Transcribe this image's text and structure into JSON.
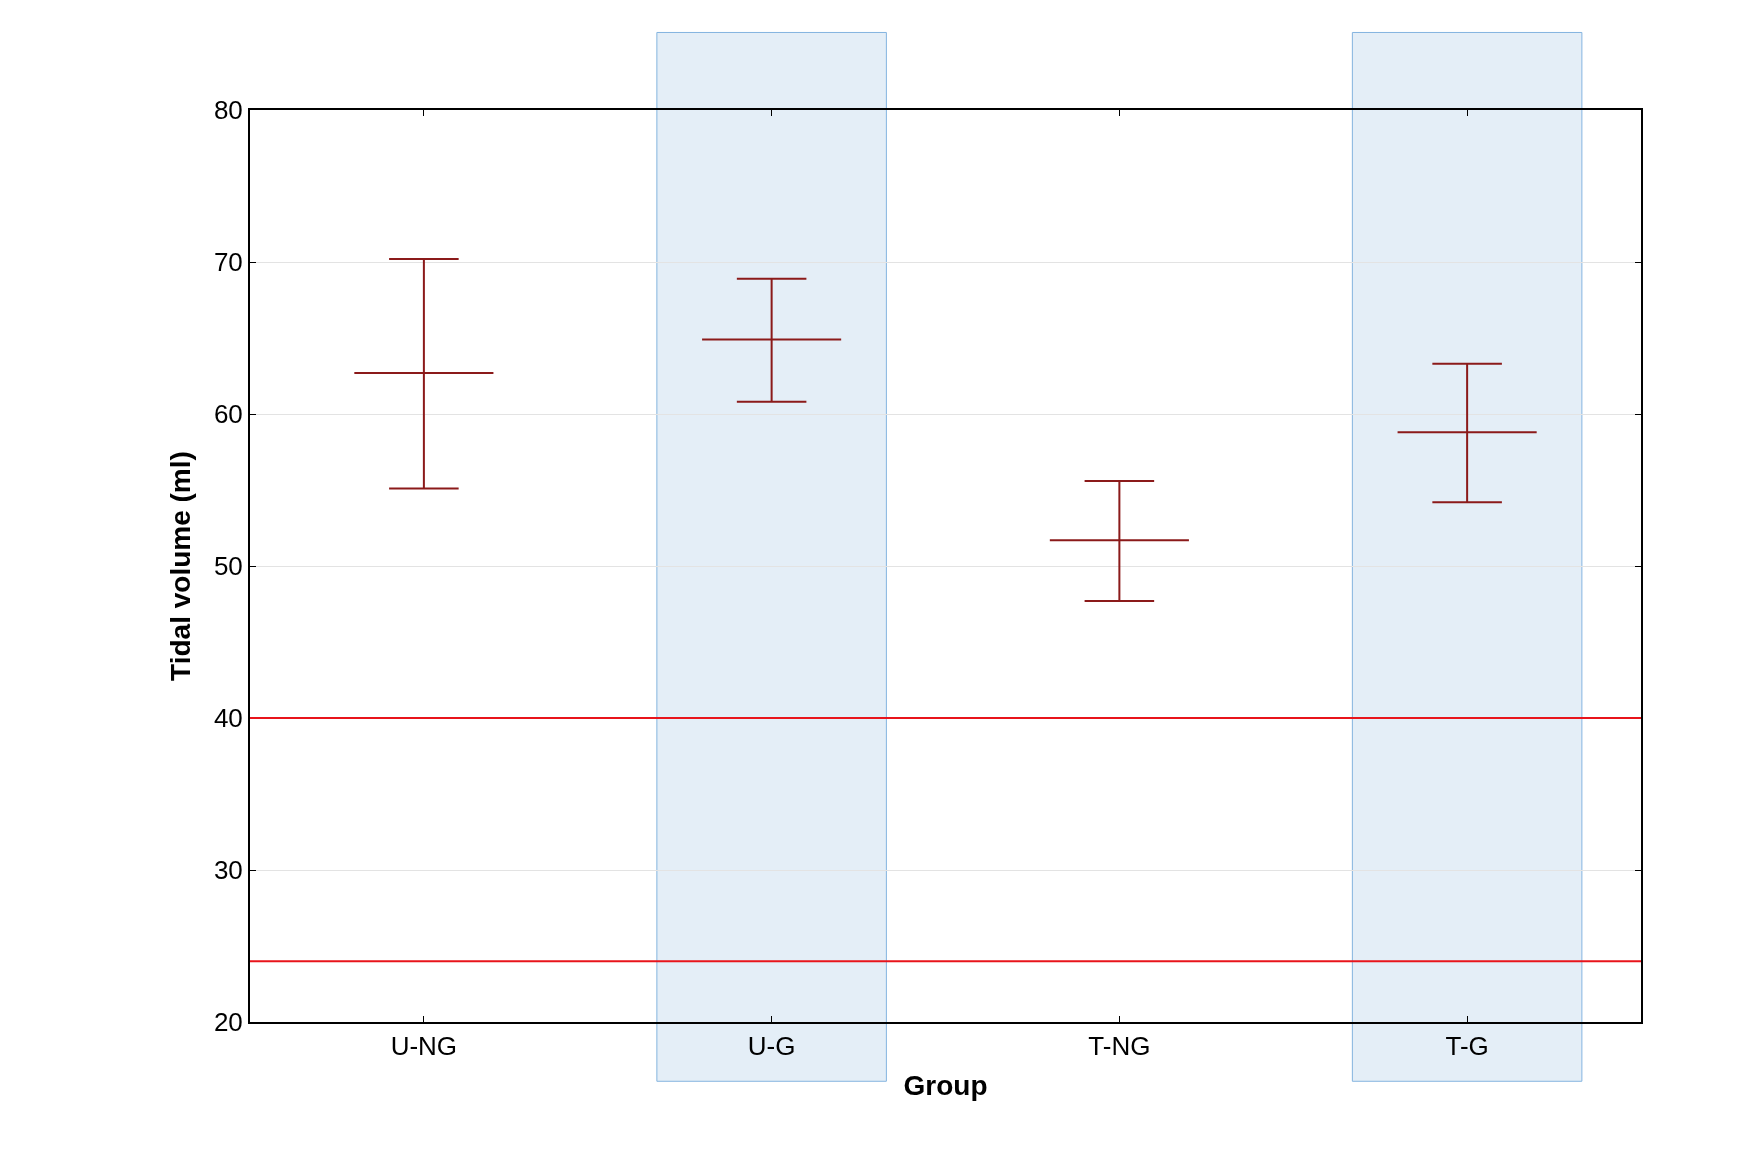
{
  "chart_data": {
    "type": "box",
    "xlabel": "Group",
    "ylabel": "Tidal volume (ml)",
    "categories": [
      "U-NG",
      "U-G",
      "T-NG",
      "T-G"
    ],
    "series": [
      {
        "color": "#8b1a1a",
        "boxes": [
          {
            "low": 55.1,
            "q1": 62.7,
            "median": 62.7,
            "q3": 62.7,
            "high": 70.2
          },
          {
            "low": 60.8,
            "q1": 64.9,
            "median": 64.9,
            "q3": 64.9,
            "high": 68.9
          },
          {
            "low": 47.7,
            "q1": 51.7,
            "median": 51.7,
            "q3": 51.7,
            "high": 55.6
          },
          {
            "low": 54.2,
            "q1": 58.8,
            "median": 58.8,
            "q3": 58.8,
            "high": 63.3
          }
        ]
      }
    ],
    "ylim": [
      20,
      80
    ],
    "yticks": [
      20,
      30,
      40,
      50,
      60,
      70,
      80
    ],
    "grid": "y",
    "ref_lines": [
      {
        "axis": "y",
        "value": 40,
        "color": "#e8141b"
      },
      {
        "axis": "y",
        "value": 24,
        "color": "#e8141b"
      }
    ],
    "bands": [
      {
        "axis": "x",
        "from": "U-G",
        "to": "U-G",
        "color": "#dce9f5"
      },
      {
        "axis": "x",
        "from": "T-G",
        "to": "T-G",
        "color": "#dce9f5"
      }
    ]
  }
}
